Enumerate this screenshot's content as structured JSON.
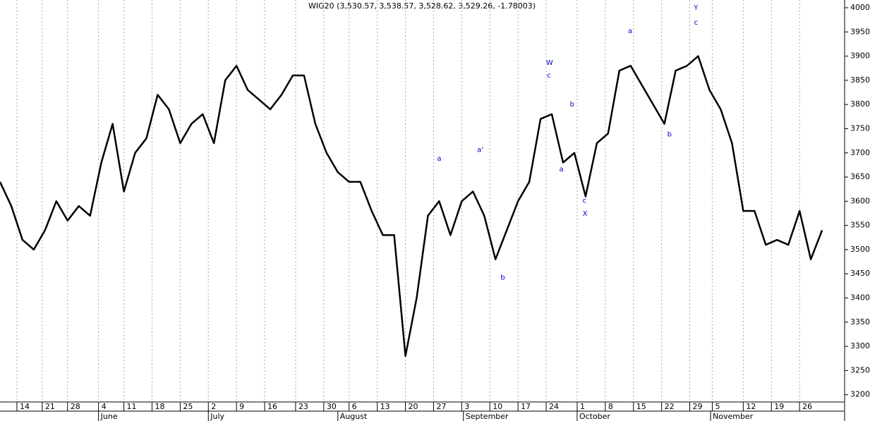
{
  "chart_data": {
    "type": "line",
    "title": "WIG20 (3,530.57, 3,538.57, 3,528.62, 3,529.26, -1.78003)",
    "color": "#000000",
    "annotation_color": "#0000cc",
    "grid": true,
    "xlim": [
      0,
      150
    ],
    "ylim": [
      3185,
      4016
    ],
    "yticks": [
      3200,
      3250,
      3300,
      3350,
      3400,
      3450,
      3500,
      3550,
      3600,
      3650,
      3700,
      3750,
      3800,
      3850,
      3900,
      3950,
      4000
    ],
    "xticks": [
      {
        "value": 3,
        "label": "14"
      },
      {
        "value": 7.5,
        "label": "21"
      },
      {
        "value": 12,
        "label": "28"
      },
      {
        "value": 17.5,
        "label": "4"
      },
      {
        "value": 22,
        "label": "11"
      },
      {
        "value": 27,
        "label": "18"
      },
      {
        "value": 32,
        "label": "25"
      },
      {
        "value": 37,
        "label": "2"
      },
      {
        "value": 42,
        "label": "9"
      },
      {
        "value": 47,
        "label": "16"
      },
      {
        "value": 52.5,
        "label": "23"
      },
      {
        "value": 57.5,
        "label": "30"
      },
      {
        "value": 62,
        "label": "6"
      },
      {
        "value": 67,
        "label": "13"
      },
      {
        "value": 72,
        "label": "20"
      },
      {
        "value": 77,
        "label": "27"
      },
      {
        "value": 82,
        "label": "3"
      },
      {
        "value": 87,
        "label": "10"
      },
      {
        "value": 92,
        "label": "17"
      },
      {
        "value": 97,
        "label": "24"
      },
      {
        "value": 102.5,
        "label": "1"
      },
      {
        "value": 107.5,
        "label": "8"
      },
      {
        "value": 112.5,
        "label": "15"
      },
      {
        "value": 117.5,
        "label": "22"
      },
      {
        "value": 122.5,
        "label": "29"
      },
      {
        "value": 126.5,
        "label": "5"
      },
      {
        "value": 132,
        "label": "12"
      },
      {
        "value": 137,
        "label": "19"
      },
      {
        "value": 142,
        "label": "26"
      }
    ],
    "month_ticks": [
      {
        "value": 17.5,
        "label": "June"
      },
      {
        "value": 37,
        "label": "July"
      },
      {
        "value": 60,
        "label": "August"
      },
      {
        "value": 82.3,
        "label": "September"
      },
      {
        "value": 102.5,
        "label": "October"
      },
      {
        "value": 126.2,
        "label": "November"
      }
    ],
    "x": [
      0,
      2,
      4,
      6,
      8,
      10,
      12,
      14,
      16,
      18,
      20,
      22,
      24,
      26,
      28,
      30,
      32,
      34,
      36,
      38,
      40,
      42,
      44,
      46,
      48,
      50,
      52,
      54,
      56,
      58,
      60,
      62,
      64,
      66,
      68,
      70,
      72,
      74,
      76,
      78,
      80,
      82,
      84,
      86,
      88,
      90,
      92,
      94,
      96,
      98,
      100,
      102,
      104,
      106,
      108,
      110,
      112,
      114,
      116,
      118,
      120,
      122,
      124,
      126,
      128,
      130,
      132,
      134,
      136,
      138,
      140,
      142,
      144,
      146
    ],
    "values": [
      3640,
      3590,
      3520,
      3500,
      3540,
      3600,
      3560,
      3590,
      3570,
      3680,
      3760,
      3620,
      3700,
      3730,
      3820,
      3790,
      3720,
      3760,
      3780,
      3720,
      3850,
      3880,
      3830,
      3810,
      3790,
      3820,
      3860,
      3860,
      3760,
      3700,
      3660,
      3640,
      3640,
      3580,
      3530,
      3530,
      3280,
      3400,
      3570,
      3600,
      3530,
      3600,
      3620,
      3570,
      3480,
      3540,
      3600,
      3640,
      3770,
      3780,
      3680,
      3700,
      3610,
      3720,
      3740,
      3870,
      3880,
      3840,
      3800,
      3760,
      3870,
      3880,
      3900,
      3830,
      3790,
      3720,
      3580,
      3580,
      3510,
      3520,
      3510,
      3580,
      3480,
      3540
    ],
    "annotations": [
      {
        "text": "a",
        "x": 78,
        "y": 3688
      },
      {
        "text": "a'",
        "x": 85.3,
        "y": 3706
      },
      {
        "text": "b",
        "x": 89.3,
        "y": 3442
      },
      {
        "text": "W",
        "x": 97.6,
        "y": 3886
      },
      {
        "text": "c",
        "x": 97.5,
        "y": 3860
      },
      {
        "text": "a",
        "x": 99.7,
        "y": 3666
      },
      {
        "text": "b",
        "x": 101.6,
        "y": 3800
      },
      {
        "text": "c",
        "x": 103.8,
        "y": 3601
      },
      {
        "text": "X",
        "x": 103.9,
        "y": 3574
      },
      {
        "text": "a",
        "x": 111.9,
        "y": 3952
      },
      {
        "text": "b",
        "x": 118.9,
        "y": 3738
      },
      {
        "text": "Y",
        "x": 123.6,
        "y": 4000
      },
      {
        "text": "c",
        "x": 123.6,
        "y": 3969
      }
    ]
  }
}
